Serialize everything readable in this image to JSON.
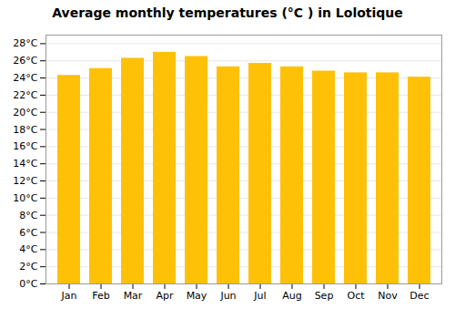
{
  "chart_data": {
    "type": "bar",
    "title": "Average monthly temperatures (°C ) in Lolotique",
    "categories": [
      "Jan",
      "Feb",
      "Mar",
      "Apr",
      "May",
      "Jun",
      "Jul",
      "Aug",
      "Sep",
      "Oct",
      "Nov",
      "Dec"
    ],
    "values": [
      24.3,
      25.1,
      26.3,
      27.0,
      26.5,
      25.3,
      25.7,
      25.3,
      24.8,
      24.6,
      24.6,
      24.1
    ],
    "color": "#FFC107",
    "ylim": [
      0,
      29
    ],
    "yticks": [
      {
        "value": 0,
        "label": "0°C"
      },
      {
        "value": 2,
        "label": "2°C"
      },
      {
        "value": 4,
        "label": "4°C"
      },
      {
        "value": 6,
        "label": "6°C"
      },
      {
        "value": 8,
        "label": "8°C"
      },
      {
        "value": 10,
        "label": "10°C"
      },
      {
        "value": 12,
        "label": "12°C"
      },
      {
        "value": 14,
        "label": "14°C"
      },
      {
        "value": 16,
        "label": "16°C"
      },
      {
        "value": 18,
        "label": "18°C"
      },
      {
        "value": 20,
        "label": "20°C"
      },
      {
        "value": 22,
        "label": "22°C"
      },
      {
        "value": 24,
        "label": "24°C"
      },
      {
        "value": 26,
        "label": "26°C"
      },
      {
        "value": 28,
        "label": "28°C"
      }
    ],
    "grid": true
  }
}
